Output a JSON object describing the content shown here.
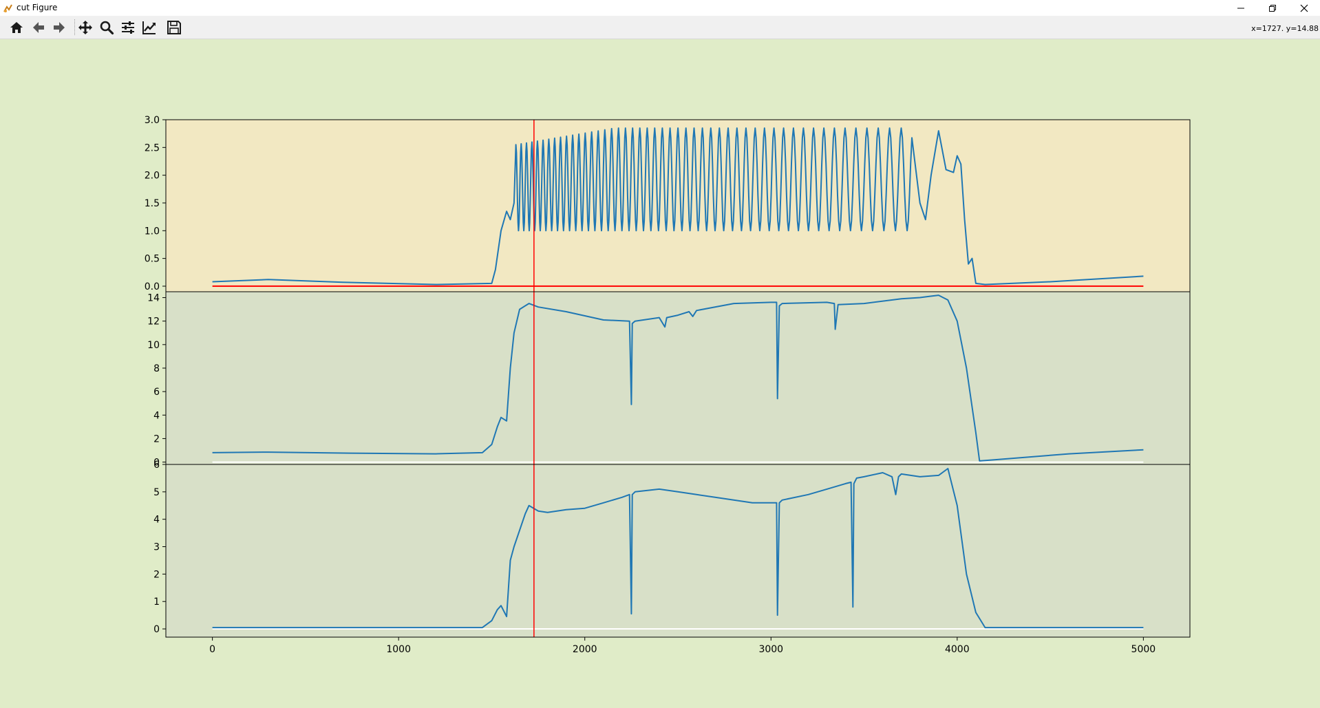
{
  "window": {
    "title": "cut Figure",
    "minimize_icon": "minimize-icon",
    "maximize_icon": "restore-icon",
    "close_icon": "close-icon"
  },
  "toolbar": {
    "buttons": [
      {
        "name": "home",
        "icon": "home-icon"
      },
      {
        "name": "back",
        "icon": "arrow-left-icon"
      },
      {
        "name": "forward",
        "icon": "arrow-right-icon"
      },
      {
        "name": "pan",
        "icon": "move-icon"
      },
      {
        "name": "zoom",
        "icon": "magnifier-icon"
      },
      {
        "name": "subplots",
        "icon": "sliders-icon"
      },
      {
        "name": "customize",
        "icon": "line-chart-icon"
      },
      {
        "name": "save",
        "icon": "floppy-disk-icon"
      }
    ]
  },
  "status": {
    "coordinates": "x=1727. y=14.88"
  },
  "colors": {
    "figure_background": "#e0ecc8",
    "panel_1_background": "#f2e8c2",
    "panel_2_3_background": "#d8e0c8",
    "trace": "#1f77b4",
    "cursor_line": "#ff0000",
    "baseline_panel_1": "#ff0000",
    "baseline_panel_2_3": "#ffffff"
  },
  "chart_data": [
    {
      "type": "line",
      "panel": 1,
      "xlim": [
        -250,
        5250
      ],
      "ylim": [
        -0.1,
        3.0
      ],
      "yticks": [
        "0.0",
        "0.5",
        "1.0",
        "1.5",
        "2.0",
        "2.5",
        "3.0"
      ],
      "ytick_values": [
        0.0,
        0.5,
        1.0,
        1.5,
        2.0,
        2.5,
        3.0
      ],
      "cursor_x": 1727,
      "baseline_y": 0.0,
      "series": [
        {
          "x": [
            0,
            300,
            700,
            1200,
            1500,
            1520,
            1550,
            1580,
            1600,
            1620,
            1640,
            1660,
            1700,
            1800,
            2000,
            2300,
            2800,
            3300,
            3700,
            3800,
            3830,
            3860,
            3900,
            3940,
            3980,
            4000,
            4020,
            4040,
            4060,
            4080,
            4100,
            4150,
            4500,
            5000
          ],
          "y": [
            0.08,
            0.12,
            0.07,
            0.03,
            0.05,
            0.3,
            1.0,
            1.35,
            1.2,
            1.5,
            2.55,
            1.0,
            1.75,
            1.75,
            1.85,
            1.95,
            1.93,
            1.93,
            1.95,
            1.5,
            1.2,
            2.0,
            2.8,
            2.1,
            2.05,
            2.35,
            2.2,
            1.2,
            0.4,
            0.5,
            0.05,
            0.03,
            0.08,
            0.18
          ],
          "oscillation": {
            "start_x": 1630,
            "end_x": 3760,
            "period_start": 28,
            "period_end": 64,
            "low": 1.0,
            "high_start": 2.55,
            "high_mid": 2.85
          }
        }
      ]
    },
    {
      "type": "line",
      "panel": 2,
      "xlim": [
        -250,
        5250
      ],
      "ylim": [
        -0.2,
        14.5
      ],
      "yticks": [
        "0",
        "2",
        "4",
        "6",
        "8",
        "10",
        "12",
        "14"
      ],
      "ytick_values": [
        0,
        2,
        4,
        6,
        8,
        10,
        12,
        14
      ],
      "cursor_x": 1727,
      "baseline_y": 0,
      "series": [
        {
          "x": [
            0,
            300,
            800,
            1200,
            1450,
            1500,
            1530,
            1550,
            1580,
            1600,
            1620,
            1650,
            1700,
            1750,
            1900,
            2100,
            2240,
            2250,
            2255,
            2270,
            2400,
            2430,
            2440,
            2500,
            2560,
            2580,
            2600,
            2800,
            3000,
            3030,
            3035,
            3045,
            3060,
            3300,
            3340,
            3345,
            3360,
            3500,
            3700,
            3800,
            3850,
            3900,
            3950,
            4000,
            4050,
            4100,
            4120,
            4200,
            4600,
            5000
          ],
          "y": [
            0.8,
            0.85,
            0.75,
            0.7,
            0.8,
            1.5,
            3.0,
            3.8,
            3.5,
            8.0,
            11.0,
            13.0,
            13.5,
            13.2,
            12.8,
            12.1,
            12.0,
            4.9,
            11.8,
            12.0,
            12.3,
            11.5,
            12.3,
            12.5,
            12.8,
            12.4,
            12.9,
            13.5,
            13.6,
            13.6,
            5.4,
            13.3,
            13.5,
            13.6,
            13.5,
            11.3,
            13.4,
            13.5,
            13.9,
            14.0,
            14.1,
            14.2,
            13.8,
            12.0,
            8.0,
            2.5,
            0.1,
            0.2,
            0.7,
            1.05
          ]
        }
      ]
    },
    {
      "type": "line",
      "panel": 3,
      "xlim": [
        -250,
        5250
      ],
      "ylim": [
        -0.3,
        6.0
      ],
      "yticks": [
        "0",
        "1",
        "2",
        "3",
        "4",
        "5",
        "6"
      ],
      "ytick_values": [
        0,
        1,
        2,
        3,
        4,
        5,
        6
      ],
      "cursor_x": 1727,
      "baseline_y": 0,
      "xticks": [
        "0",
        "1000",
        "2000",
        "3000",
        "4000",
        "5000"
      ],
      "xtick_values": [
        0,
        1000,
        2000,
        3000,
        4000,
        5000
      ],
      "series": [
        {
          "x": [
            0,
            1000,
            1450,
            1500,
            1530,
            1550,
            1580,
            1600,
            1620,
            1680,
            1700,
            1750,
            1800,
            1900,
            2000,
            2100,
            2200,
            2240,
            2250,
            2255,
            2270,
            2400,
            2500,
            2600,
            2700,
            2800,
            2900,
            3000,
            3030,
            3035,
            3045,
            3060,
            3200,
            3300,
            3400,
            3430,
            3440,
            3445,
            3460,
            3500,
            3600,
            3650,
            3670,
            3685,
            3700,
            3800,
            3900,
            3950,
            4000,
            4050,
            4100,
            4150,
            4500,
            5000
          ],
          "y": [
            0.05,
            0.05,
            0.05,
            0.3,
            0.7,
            0.85,
            0.45,
            2.5,
            3.0,
            4.2,
            4.5,
            4.3,
            4.25,
            4.35,
            4.4,
            4.6,
            4.8,
            4.9,
            0.55,
            4.9,
            5.0,
            5.1,
            5.0,
            4.9,
            4.8,
            4.7,
            4.6,
            4.6,
            4.6,
            0.5,
            4.6,
            4.7,
            4.9,
            5.1,
            5.3,
            5.35,
            0.8,
            5.3,
            5.5,
            5.55,
            5.7,
            5.55,
            4.9,
            5.55,
            5.65,
            5.55,
            5.6,
            5.85,
            4.5,
            2.0,
            0.6,
            0.05,
            0.05,
            0.05
          ]
        }
      ]
    }
  ]
}
